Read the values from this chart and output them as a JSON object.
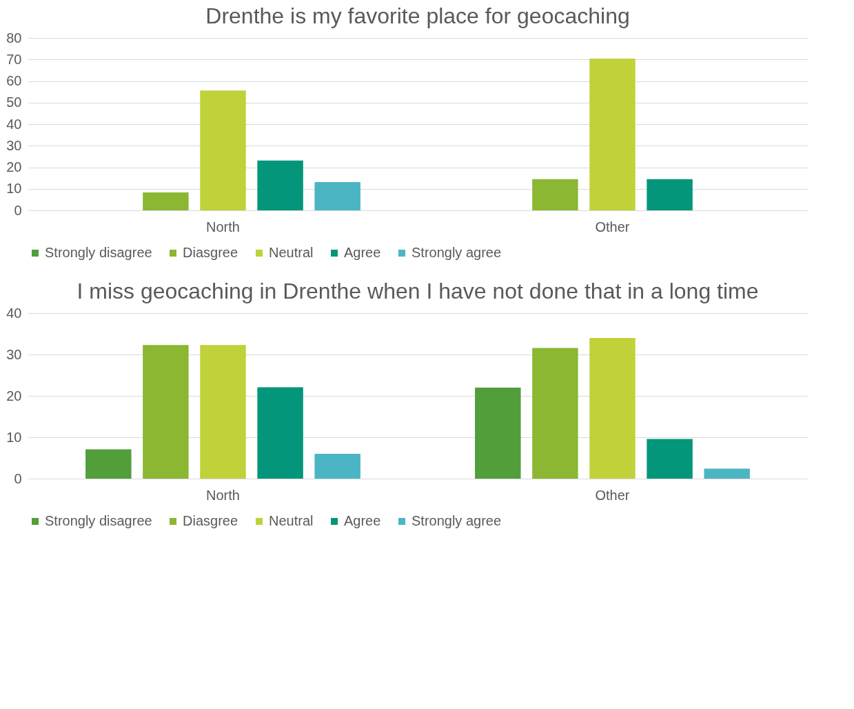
{
  "chart_data": [
    {
      "type": "bar",
      "title": "Drenthe is my favorite place for geocaching",
      "categories": [
        "North",
        "Other"
      ],
      "series": [
        {
          "name": "Strongly disagree",
          "color": "#519e3a",
          "values": [
            0,
            0
          ]
        },
        {
          "name": "Diasgree",
          "color": "#8bb732",
          "values": [
            8.3,
            14.5
          ]
        },
        {
          "name": "Neutral",
          "color": "#c0d13a",
          "values": [
            55.6,
            70.4
          ]
        },
        {
          "name": "Agree",
          "color": "#03967a",
          "values": [
            23.1,
            14.5
          ]
        },
        {
          "name": "Strongly agree",
          "color": "#4bb5c4",
          "values": [
            13.1,
            0
          ]
        }
      ],
      "ylim": [
        0,
        80
      ],
      "yticks": [
        0,
        10,
        20,
        30,
        40,
        50,
        60,
        70,
        80
      ],
      "grid": "y",
      "legend": "bottom"
    },
    {
      "type": "bar",
      "title": "I miss geocaching in Drenthe when I have not done that in a long time",
      "categories": [
        "North",
        "Other"
      ],
      "series": [
        {
          "name": "Strongly disagree",
          "color": "#519e3a",
          "values": [
            7.1,
            22.0
          ]
        },
        {
          "name": "Diasgree",
          "color": "#8bb732",
          "values": [
            32.3,
            31.6
          ]
        },
        {
          "name": "Neutral",
          "color": "#c0d13a",
          "values": [
            32.3,
            34.0
          ]
        },
        {
          "name": "Agree",
          "color": "#03967a",
          "values": [
            22.1,
            9.6
          ]
        },
        {
          "name": "Strongly agree",
          "color": "#4bb5c4",
          "values": [
            6.0,
            2.4
          ]
        }
      ],
      "ylim": [
        0,
        40
      ],
      "yticks": [
        0,
        10,
        20,
        30,
        40
      ],
      "grid": "y",
      "legend": "bottom"
    }
  ]
}
